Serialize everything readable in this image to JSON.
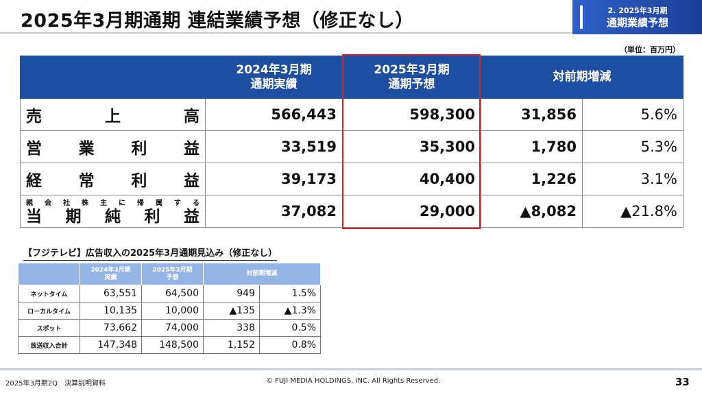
{
  "header": {
    "title": "2025年3月期通期 連結業績予想（修正なし）",
    "corner_sub": "2. 2025年3月期",
    "corner_main": "通期業績予想",
    "unit": "（単位：百万円）"
  },
  "main_table": {
    "headers": {
      "prev_l1": "2024年3月期",
      "prev_l2": "通期実績",
      "fcst_l1": "2025年3月期",
      "fcst_l2": "通期予想",
      "change": "対前期増減"
    },
    "rows": [
      {
        "chars": [
          "売",
          "上",
          "高"
        ],
        "prev": "566,443",
        "fcst": "598,300",
        "diff": "31,856",
        "pct": "5.6%"
      },
      {
        "chars": [
          "営",
          "業",
          "利",
          "益"
        ],
        "prev": "33,519",
        "fcst": "35,300",
        "diff": "1,780",
        "pct": "5.3%"
      },
      {
        "chars": [
          "経",
          "常",
          "利",
          "益"
        ],
        "prev": "39,173",
        "fcst": "40,400",
        "diff": "1,226",
        "pct": "3.1%"
      },
      {
        "small_chars": [
          "親",
          "会",
          "社",
          "株",
          "主",
          "に",
          "帰",
          "属",
          "す",
          "る"
        ],
        "chars": [
          "当",
          "期",
          "純",
          "利",
          "益"
        ],
        "prev": "37,082",
        "fcst": "29,000",
        "diff": "▲8,082",
        "pct": "▲21.8%"
      }
    ]
  },
  "ad_section": {
    "title": "【フジテレビ】広告収入の2025年3月通期見込み（修正なし）",
    "headers": {
      "prev_l1": "2024年3月期",
      "prev_l2": "実績",
      "fcst_l1": "2025年3月期",
      "fcst_l2": "予想",
      "change": "対前期増減"
    },
    "rows": [
      {
        "label": "ネットタイム",
        "prev": "63,551",
        "fcst": "64,500",
        "diff": "949",
        "pct": "1.5%"
      },
      {
        "label": "ローカルタイム",
        "prev": "10,135",
        "fcst": "10,000",
        "diff": "▲135",
        "pct": "▲1.3%"
      },
      {
        "label": "スポット",
        "prev": "73,662",
        "fcst": "74,000",
        "diff": "338",
        "pct": "0.5%"
      },
      {
        "label": "放送収入合計",
        "prev": "147,348",
        "fcst": "148,500",
        "diff": "1,152",
        "pct": "0.8%"
      }
    ]
  },
  "footer": {
    "left": "2025年3月期2Q　決算説明資料",
    "center": "© FUJI MEDIA HOLDINGS, INC. All Rights Reserved.",
    "page": "33"
  },
  "colors": {
    "header_blue": "#1e4ea0",
    "sub_header_blue": "#94b4e6",
    "highlight_red": "#d6202c"
  }
}
